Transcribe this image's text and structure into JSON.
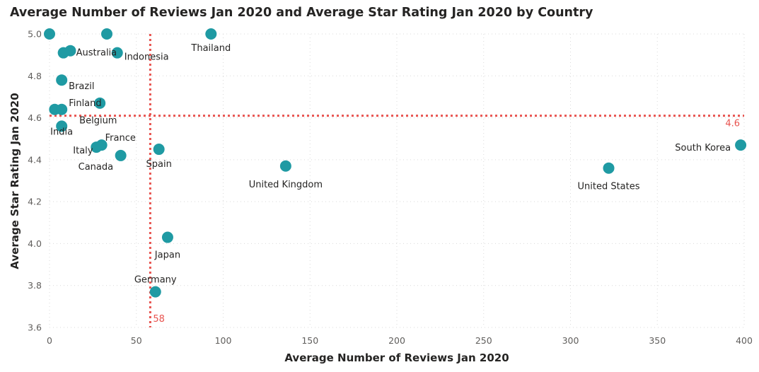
{
  "chart_data": {
    "type": "scatter",
    "title": "Average Number of Reviews Jan 2020 and Average Star Rating Jan 2020 by Country",
    "xlabel": "Average Number of Reviews Jan 2020",
    "ylabel": "Average Star Rating Jan 2020",
    "xlim": [
      0,
      400
    ],
    "ylim": [
      3.6,
      5.0
    ],
    "x_ticks": [
      0,
      50,
      100,
      150,
      200,
      250,
      300,
      350,
      400
    ],
    "y_ticks": [
      3.6,
      3.8,
      4.0,
      4.2,
      4.4,
      4.6,
      4.8,
      5.0
    ],
    "x_tick_labels": [
      "0",
      "50",
      "100",
      "150",
      "200",
      "250",
      "300",
      "350",
      "400"
    ],
    "y_tick_labels": [
      "3.6",
      "3.8",
      "4.0",
      "4.2",
      "4.4",
      "4.6",
      "4.8",
      "5.0"
    ],
    "grid": "dotted",
    "marker_color": "#1F9AA3",
    "reference_color": "#E8534F",
    "reference_lines": [
      {
        "axis": "x",
        "value": 58,
        "label": "58"
      },
      {
        "axis": "y",
        "value": 4.61,
        "label": "4.6"
      }
    ],
    "points": [
      {
        "label": "",
        "x": 0,
        "y": 5.0
      },
      {
        "label": "",
        "x": 33,
        "y": 5.0
      },
      {
        "label": "Thailand",
        "x": 93,
        "y": 5.0
      },
      {
        "label": "",
        "x": 12,
        "y": 4.92
      },
      {
        "label": "Australia",
        "x": 8,
        "y": 4.91
      },
      {
        "label": "Indonesia",
        "x": 39,
        "y": 4.91
      },
      {
        "label": "Brazil",
        "x": 7,
        "y": 4.78
      },
      {
        "label": "Finland",
        "x": 29,
        "y": 4.67
      },
      {
        "label": "",
        "x": 3,
        "y": 4.64
      },
      {
        "label": "Belgium",
        "x": 7,
        "y": 4.64
      },
      {
        "label": "India",
        "x": 7,
        "y": 4.56
      },
      {
        "label": "Italy",
        "x": 27,
        "y": 4.46
      },
      {
        "label": "France",
        "x": 30,
        "y": 4.47
      },
      {
        "label": "Canada",
        "x": 41,
        "y": 4.42
      },
      {
        "label": "Spain",
        "x": 63,
        "y": 4.45
      },
      {
        "label": "United Kingdom",
        "x": 136,
        "y": 4.37
      },
      {
        "label": "United States",
        "x": 322,
        "y": 4.36
      },
      {
        "label": "South Korea",
        "x": 398,
        "y": 4.47
      },
      {
        "label": "Japan",
        "x": 68,
        "y": 4.03
      },
      {
        "label": "Germany",
        "x": 61,
        "y": 3.77
      }
    ]
  }
}
